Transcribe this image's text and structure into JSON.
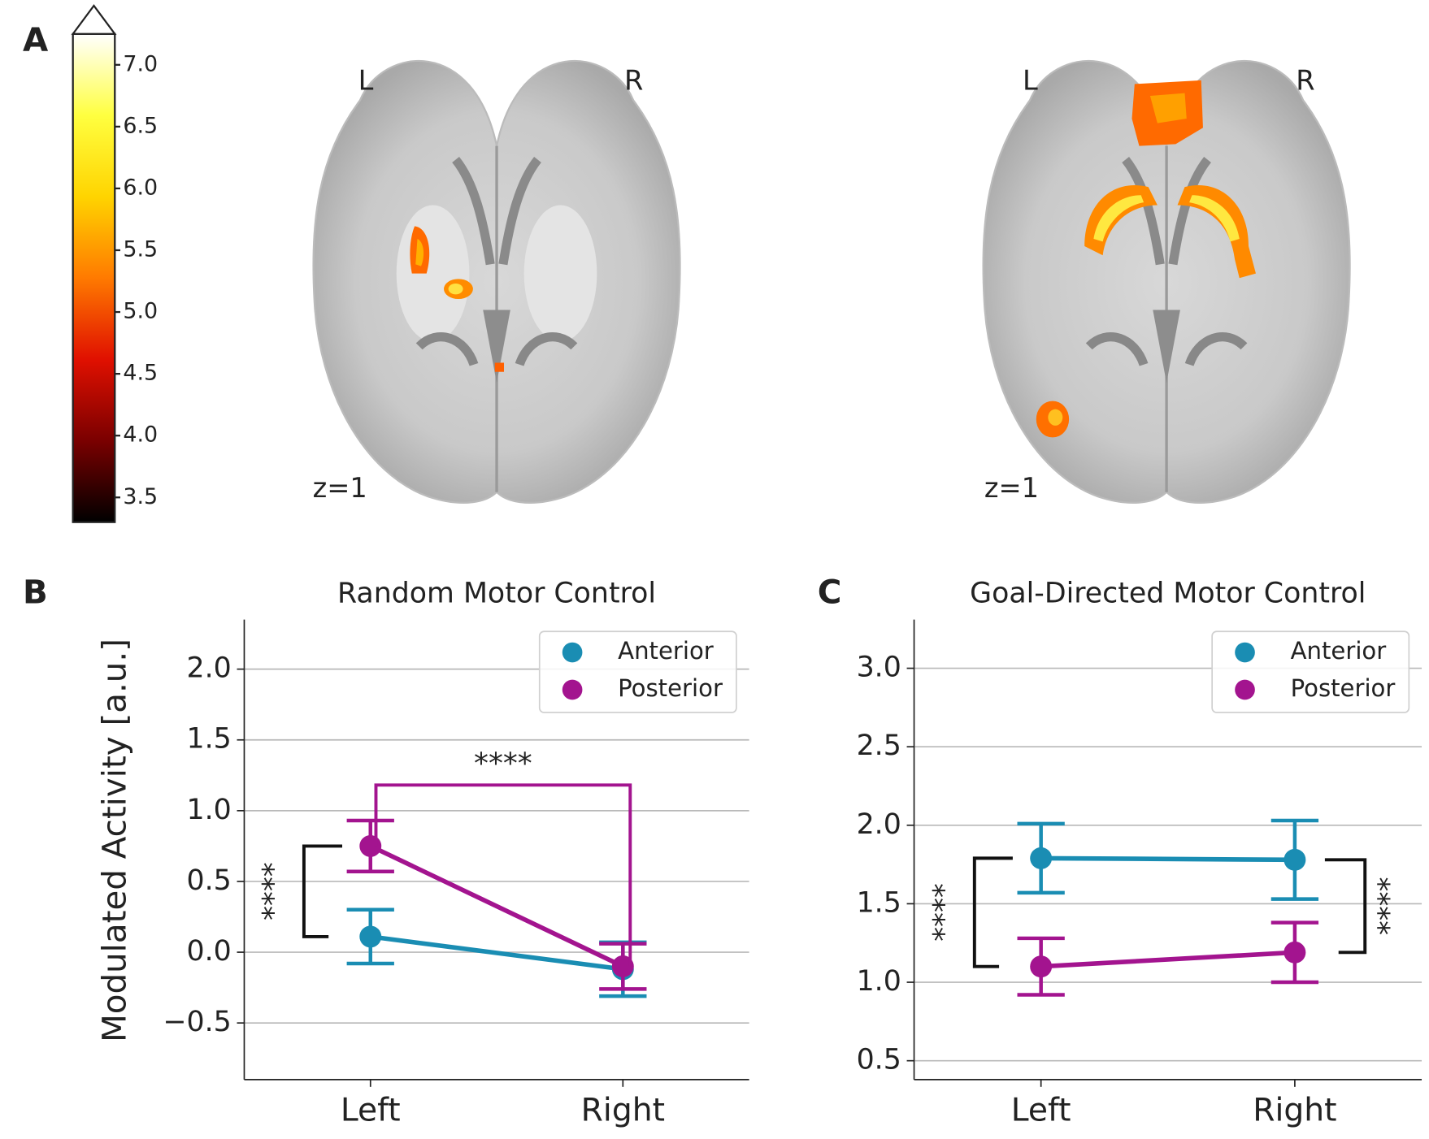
{
  "panel_labels": [
    "A",
    "B",
    "C"
  ],
  "brain_slices": [
    {
      "left": "L",
      "right": "R",
      "slice": "z=1"
    },
    {
      "left": "L",
      "right": "R",
      "slice": "z=1"
    }
  ],
  "chart_data": [
    {
      "type": "colorbar",
      "ylim": [
        3.3,
        7.25
      ],
      "yticks": [
        3.5,
        {
          "value": 4.0,
          "label": "4.0"
        },
        4.5,
        {
          "value": 5.0,
          "label": "5.0"
        },
        5.5,
        {
          "value": 6.0,
          "label": "6.0"
        },
        6.5,
        {
          "value": 7.0,
          "label": "7.0"
        }
      ],
      "colors": [
        "#000000",
        "#7a0000",
        "#e01000",
        "#ff7a00",
        "#ffd400",
        "#ffff40",
        "#ffffff"
      ],
      "extend": "max"
    },
    {
      "type": "line",
      "title": "Random Motor Control",
      "y_label": "Modulated Activity [a.u.]",
      "categories": [
        "Left",
        "Right"
      ],
      "series": [
        {
          "name": "Anterior",
          "color": "#1a8db3",
          "values": [
            0.11,
            -0.12
          ],
          "errors": [
            0.19,
            0.19
          ]
        },
        {
          "name": "Posterior",
          "color": "#a3148f",
          "values": [
            0.75,
            -0.1
          ],
          "errors": [
            0.18,
            0.16
          ]
        }
      ],
      "ylim": [
        -0.9,
        2.35
      ],
      "yticks": [
        {
          "value": -0.5,
          "label": "−0.5"
        },
        {
          "value": 0.0,
          "label": "0.0"
        },
        0.5,
        {
          "value": 1.0,
          "label": "1.0"
        },
        1.5,
        {
          "value": 2.0,
          "label": "2.0"
        }
      ],
      "grid": true,
      "legend": "upper right",
      "annotations": [
        {
          "text": "****",
          "color": "#111111",
          "position": "left"
        },
        {
          "text": "****",
          "color": "#a3148f",
          "position": "top"
        }
      ]
    },
    {
      "type": "line",
      "title": "Goal-Directed Motor Control",
      "categories": [
        "Left",
        "Right"
      ],
      "series": [
        {
          "name": "Anterior",
          "color": "#1a8db3",
          "values": [
            1.79,
            1.78
          ],
          "errors": [
            0.22,
            0.25
          ]
        },
        {
          "name": "Posterior",
          "color": "#a3148f",
          "values": [
            1.1,
            1.19
          ],
          "errors": [
            0.18,
            0.19
          ]
        }
      ],
      "ylim": [
        0.38,
        3.31
      ],
      "yticks": [
        0.5,
        {
          "value": 1.0,
          "label": "1.0"
        },
        1.5,
        {
          "value": 2.0,
          "label": "2.0"
        },
        2.5,
        {
          "value": 3.0,
          "label": "3.0"
        }
      ],
      "grid": true,
      "legend": "upper right",
      "annotations": [
        {
          "text": "****",
          "color": "#111111",
          "position": "left"
        },
        {
          "text": "****",
          "color": "#111111",
          "position": "right"
        }
      ]
    }
  ]
}
